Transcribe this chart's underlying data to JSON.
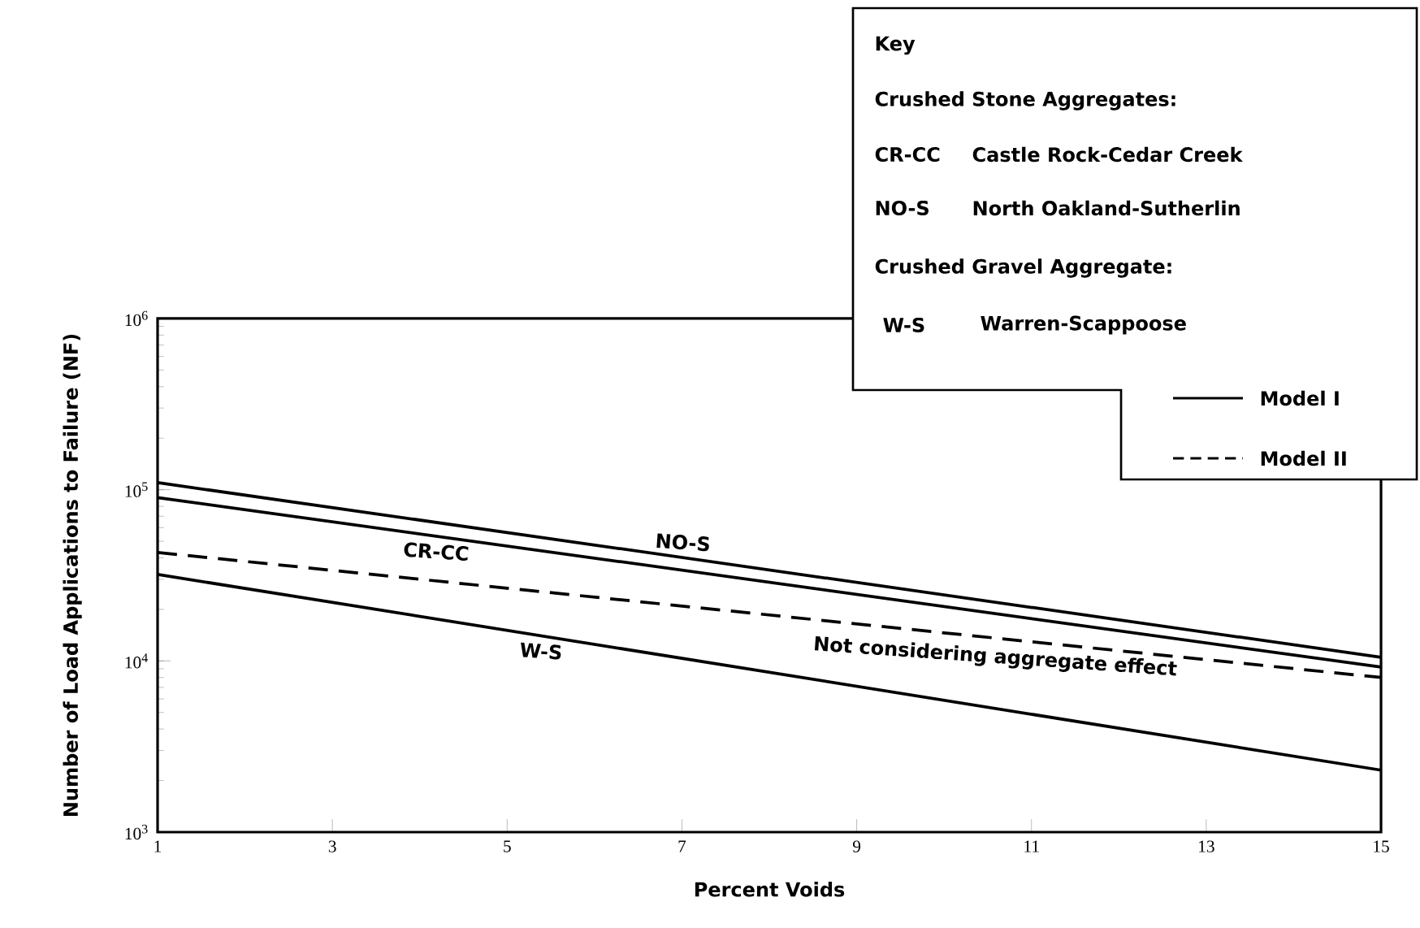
{
  "chart_data": {
    "type": "line",
    "xlabel": "Percent Voids",
    "ylabel": "Number of Load Applications to Failure (NF)",
    "x": [
      1,
      15
    ],
    "series": [
      {
        "name": "NO-S",
        "color": "#000000",
        "line_style": "solid",
        "values": [
          110000,
          10500
        ]
      },
      {
        "name": "CR-CC",
        "color": "#000000",
        "line_style": "solid",
        "values": [
          90000,
          9200
        ]
      },
      {
        "name": "W-S",
        "color": "#000000",
        "line_style": "solid",
        "values": [
          32000,
          2300
        ]
      },
      {
        "name": "Not considering aggregate effect",
        "color": "#000000",
        "line_style": "dashed",
        "values": [
          43000,
          8000
        ]
      }
    ],
    "log": "y",
    "marker": "none",
    "legend": false,
    "grid": false,
    "xlim": [
      1,
      15
    ],
    "xticks": [
      1,
      3,
      5,
      7,
      9,
      11,
      13,
      15
    ],
    "ylim": [
      1000,
      1000000
    ],
    "yticks": [
      {
        "value": 1000,
        "label": "10$^{3}$"
      },
      {
        "value": 10000,
        "label": "10$^{4}$"
      },
      {
        "value": 100000,
        "label": "10$^{5}$"
      },
      {
        "value": 1000000,
        "label": "10$^{6}$"
      }
    ],
    "annotations": [
      "Key",
      "Crushed Stone Aggregates:",
      "CR-CC",
      "Castle Rock-Cedar Creek",
      "NO-S",
      "North Oakland-Sutherlin",
      "Crushed Gravel Aggregate:",
      "W-S",
      "Warren-Scappoose",
      "Model I",
      "Model II"
    ]
  }
}
